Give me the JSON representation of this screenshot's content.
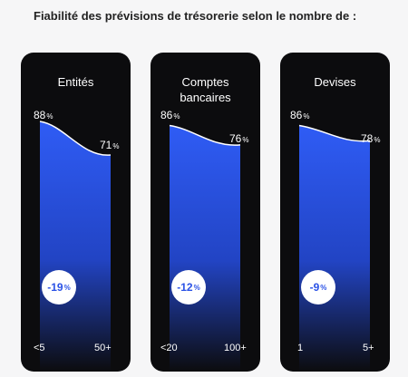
{
  "title": "Fiabilité des prévisions de trésorerie selon le nombre de :",
  "unit": "%",
  "colors": {
    "panel": "#0c0c0e",
    "fill_top": "#2f5cf5",
    "fill_bottom": "#0c0c0e",
    "badge_text": "#2a52e6",
    "line": "#ffffff"
  },
  "chart_data": [
    {
      "type": "area",
      "title": "Entités",
      "categories": [
        "<5",
        "50+"
      ],
      "values": [
        88,
        71
      ],
      "change_label": "-19",
      "ylim": [
        0,
        100
      ],
      "grid": false
    },
    {
      "type": "area",
      "title": "Comptes bancaires",
      "categories": [
        "<20",
        "100+"
      ],
      "values": [
        86,
        76
      ],
      "change_label": "-12",
      "ylim": [
        0,
        100
      ],
      "grid": false
    },
    {
      "type": "area",
      "title": "Devises",
      "categories": [
        "1",
        "5+"
      ],
      "values": [
        86,
        78
      ],
      "change_label": "-9",
      "ylim": [
        0,
        100
      ],
      "grid": false
    }
  ]
}
